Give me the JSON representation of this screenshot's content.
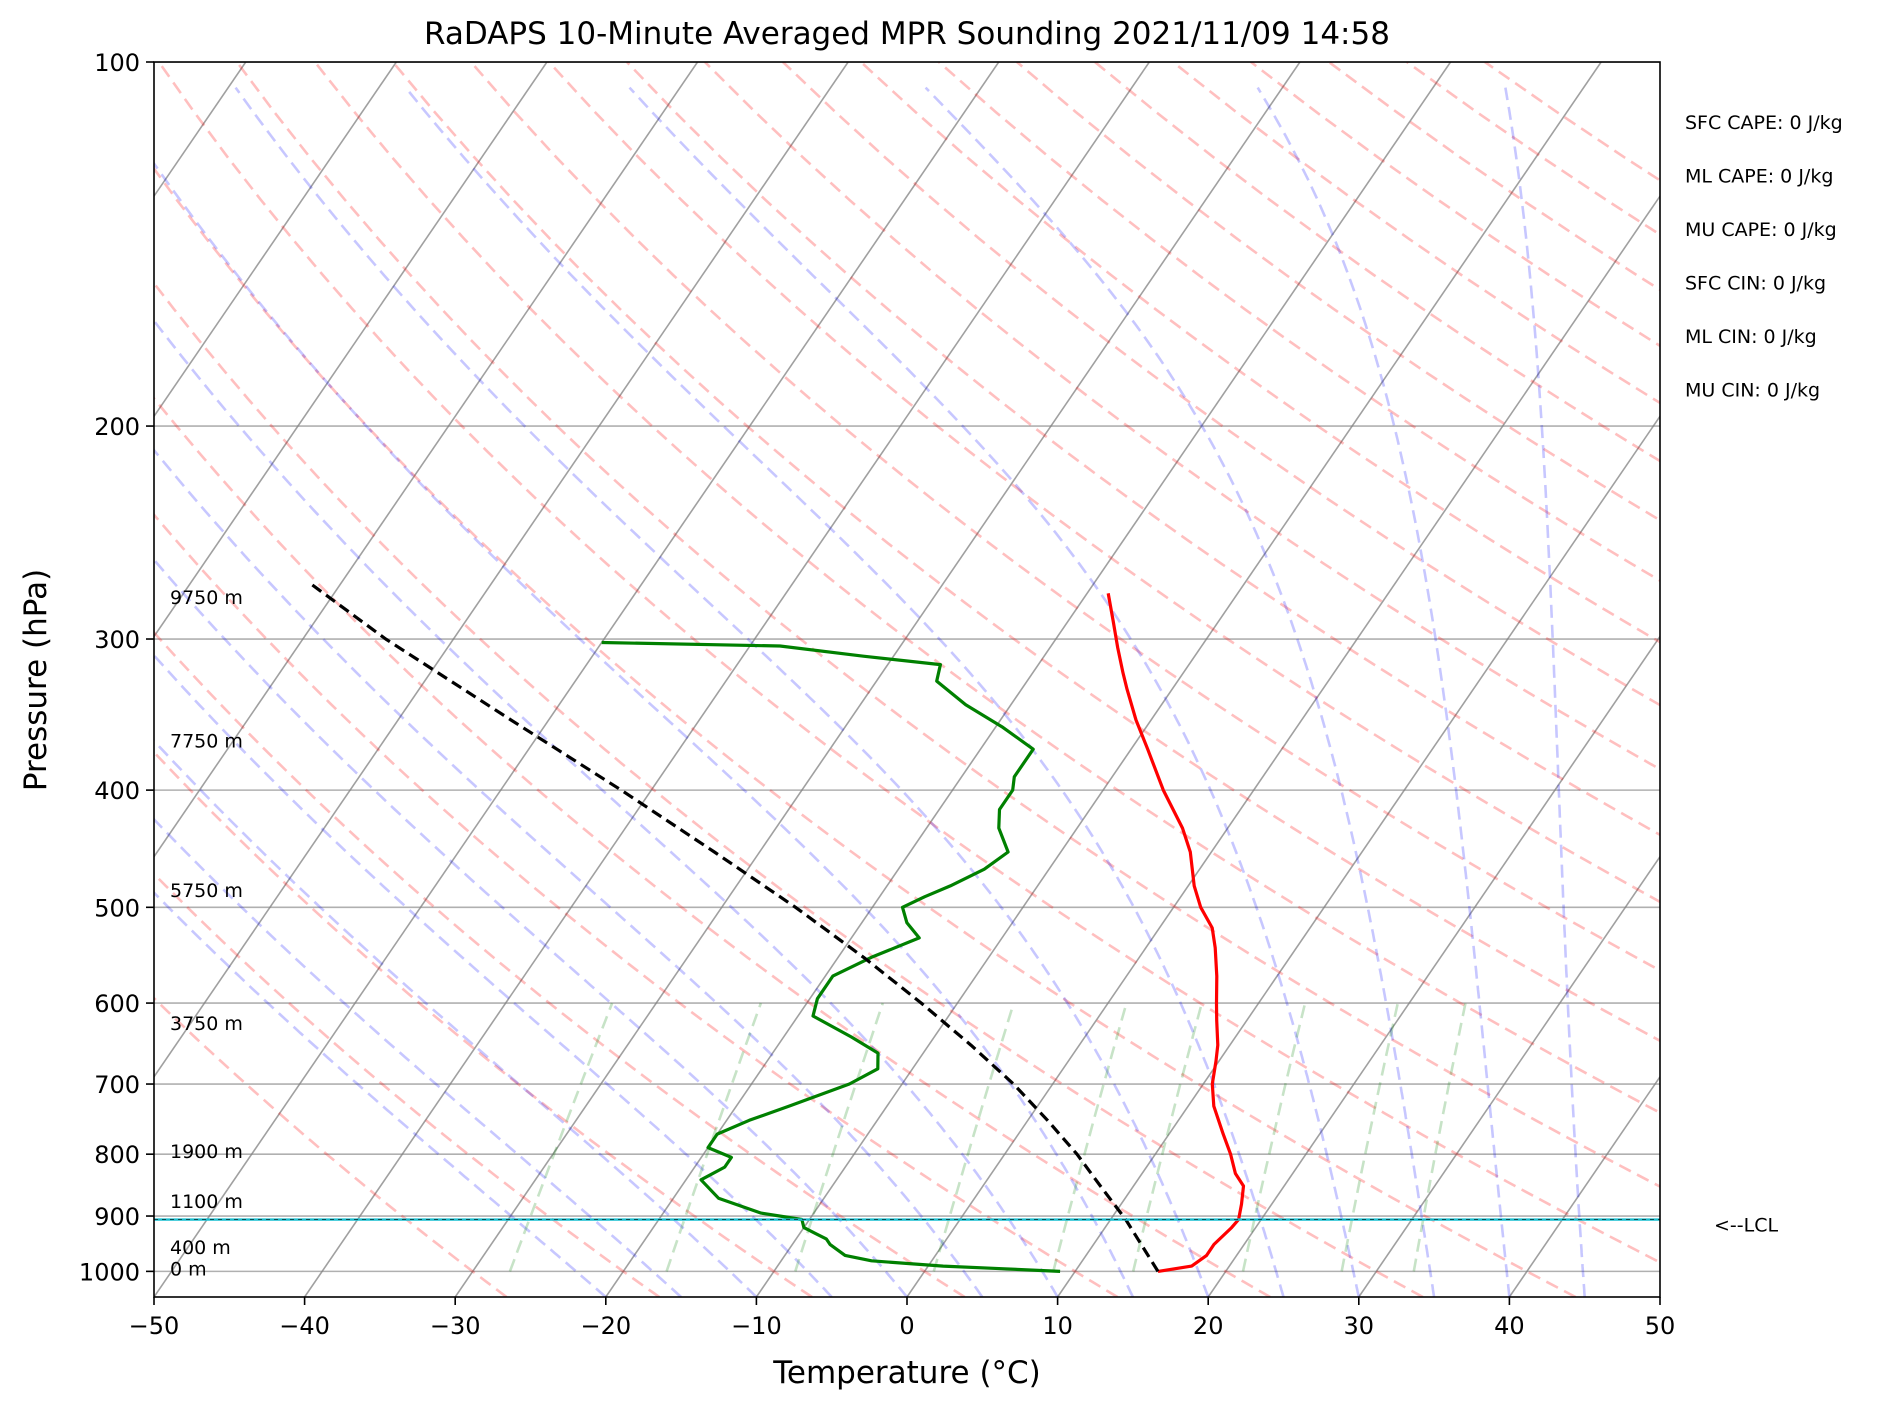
{
  "chart_data": {
    "type": "line",
    "title": "RaDAPS 10-Minute Averaged MPR Sounding 2021/11/09 14:58",
    "xlabel": "Temperature (°C)",
    "ylabel": "Pressure (hPa)",
    "xlim": [
      -50,
      50
    ],
    "ylim": [
      1050,
      100
    ],
    "y_scale": "log",
    "x_ticks": [
      -50,
      -40,
      -30,
      -20,
      -10,
      0,
      10,
      20,
      30,
      40,
      50
    ],
    "x_tick_labels": [
      "−50",
      "−40",
      "−30",
      "−20",
      "−10",
      "0",
      "10",
      "20",
      "30",
      "40",
      "50"
    ],
    "y_ticks": [
      100,
      200,
      300,
      400,
      500,
      600,
      700,
      800,
      900,
      1000
    ],
    "y_tick_labels": [
      "100",
      "200",
      "300",
      "400",
      "500",
      "600",
      "700",
      "800",
      "900",
      "1000"
    ],
    "grid": true,
    "height_labels": [
      {
        "text": "9750 m",
        "p": 277
      },
      {
        "text": "7750 m",
        "p": 364
      },
      {
        "text": "5750 m",
        "p": 484
      },
      {
        "text": "3750 m",
        "p": 623
      },
      {
        "text": "1900 m",
        "p": 795
      },
      {
        "text": "1100 m",
        "p": 875
      },
      {
        "text": "400 m",
        "p": 955
      },
      {
        "text": "0 m",
        "p": 995
      }
    ],
    "indices": [
      "SFC CAPE: 0 J/kg",
      "ML CAPE: 0 J/kg",
      "MU CAPE: 0 J/kg",
      "SFC CIN: 0 J/kg",
      "ML CIN: 0 J/kg",
      "MU CIN: 0 J/kg"
    ],
    "lcl": {
      "label": "<--LCL",
      "p": 906,
      "color": "#17becf"
    },
    "series": [
      {
        "key": "temperature",
        "color": "#ff0000",
        "style": "solid",
        "p": [
          1000,
          990,
          970,
          950,
          920,
          906,
          880,
          850,
          830,
          800,
          770,
          730,
          700,
          670,
          650,
          620,
          600,
          570,
          540,
          520,
          500,
          480,
          450,
          430,
          400,
          370,
          350,
          330,
          320,
          305,
          290,
          275
        ],
        "t": [
          15.5,
          17.5,
          18.0,
          18.0,
          18.4,
          18.5,
          18.0,
          17.3,
          16.2,
          15.0,
          13.6,
          11.7,
          10.6,
          9.8,
          9.2,
          8.0,
          7.2,
          6.0,
          4.6,
          3.5,
          1.8,
          0.4,
          -1.4,
          -3.0,
          -6.0,
          -8.9,
          -11.0,
          -13.0,
          -14.0,
          -15.5,
          -17.0,
          -18.6
        ]
      },
      {
        "key": "dewpoint",
        "color": "#008000",
        "style": "solid",
        "p": [
          1000,
          995,
          990,
          980,
          970,
          950,
          940,
          930,
          920,
          906,
          895,
          870,
          840,
          820,
          805,
          790,
          770,
          750,
          730,
          700,
          680,
          660,
          640,
          615,
          595,
          570,
          550,
          530,
          515,
          500,
          490,
          480,
          465,
          450,
          430,
          415,
          400,
          390,
          370,
          355,
          340,
          325,
          315,
          310,
          304,
          302
        ],
        "t": [
          9.0,
          5.0,
          1.0,
          -4.0,
          -6.0,
          -7.5,
          -8.0,
          -9.0,
          -10.0,
          -10.5,
          -13.5,
          -17.0,
          -19.0,
          -18.0,
          -18.0,
          -20.0,
          -20.0,
          -18.5,
          -16.5,
          -13.5,
          -12.3,
          -13.0,
          -15.5,
          -19.0,
          -19.5,
          -19.5,
          -17.8,
          -15.5,
          -17.0,
          -18.0,
          -17.0,
          -15.8,
          -14.3,
          -13.5,
          -15.2,
          -16.0,
          -16.0,
          -16.5,
          -16.5,
          -19.5,
          -23.0,
          -26.0,
          -26.5,
          -32.0,
          -38.0,
          -50.0
        ]
      },
      {
        "key": "parcel",
        "color": "#000000",
        "style": "dashed",
        "p": [
          1000,
          906,
          850,
          800,
          750,
          700,
          650,
          600,
          550,
          500,
          450,
          400,
          350,
          300,
          270
        ],
        "t": [
          15.5,
          11.0,
          7.8,
          4.8,
          1.3,
          -2.6,
          -7.2,
          -12.4,
          -18.3,
          -25.1,
          -33.0,
          -42.0,
          -52.5,
          -64.5,
          -72.0
        ]
      }
    ],
    "skew_factor": 0.684,
    "reference_lines": {
      "dry_adiabats_color": "#ff0000",
      "moist_adiabats_color": "#0000ff",
      "mixing_ratio_color": "#008000",
      "isotherms_color": "#808080"
    }
  }
}
